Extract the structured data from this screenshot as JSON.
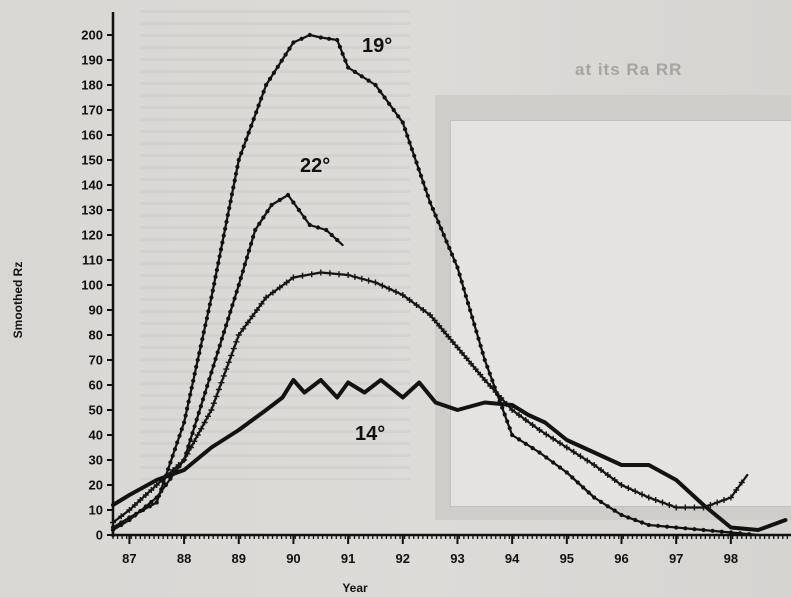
{
  "background": {
    "panel_caption": "at its Ra RR"
  },
  "chart_data": {
    "type": "line",
    "title": "",
    "xlabel": "Year",
    "ylabel": "Smoothed Rz",
    "xlim": [
      86.7,
      99.1
    ],
    "ylim": [
      0,
      200
    ],
    "x_ticks": [
      "87",
      "88",
      "89",
      "90",
      "91",
      "92",
      "93",
      "94",
      "95",
      "96",
      "97",
      "98"
    ],
    "y_ticks": [
      0,
      10,
      20,
      30,
      40,
      50,
      60,
      70,
      80,
      90,
      100,
      110,
      120,
      130,
      140,
      150,
      160,
      170,
      180,
      190,
      200
    ],
    "grid": false,
    "series": [
      {
        "name": "19°",
        "marker": "filled-dot",
        "x": [
          86.7,
          87.0,
          87.5,
          88.0,
          88.5,
          89.0,
          89.5,
          90.0,
          90.3,
          90.5,
          90.8,
          91.0,
          91.5,
          92.0,
          92.5,
          93.0,
          93.5,
          94.0,
          94.5,
          95.0,
          95.5,
          96.0,
          96.5,
          97.0,
          97.5,
          98.0,
          98.5
        ],
        "y": [
          3,
          7,
          13,
          45,
          95,
          150,
          180,
          197,
          200,
          199,
          198,
          187,
          180,
          165,
          133,
          107,
          70,
          40,
          33,
          25,
          15,
          8,
          4,
          3,
          2,
          1,
          0
        ]
      },
      {
        "name": "22°",
        "marker": "filled-dot",
        "x": [
          86.7,
          87.0,
          87.5,
          88.0,
          88.5,
          89.0,
          89.3,
          89.6,
          89.9,
          90.1,
          90.3,
          90.6,
          90.9
        ],
        "y": [
          2,
          6,
          15,
          30,
          65,
          100,
          122,
          132,
          136,
          130,
          124,
          122,
          116
        ]
      },
      {
        "name": "",
        "marker": "plus",
        "x": [
          86.7,
          87.0,
          87.5,
          88.0,
          88.5,
          89.0,
          89.5,
          90.0,
          90.5,
          91.0,
          91.5,
          92.0,
          92.5,
          93.0,
          93.5,
          94.0,
          94.5,
          95.0,
          95.5,
          96.0,
          96.5,
          97.0,
          97.5,
          98.0,
          98.3
        ],
        "y": [
          5,
          10,
          20,
          30,
          50,
          80,
          95,
          103,
          105,
          104,
          101,
          96,
          88,
          75,
          62,
          50,
          42,
          35,
          28,
          20,
          15,
          11,
          11,
          15,
          24
        ]
      },
      {
        "name": "14°",
        "marker": "solid",
        "x": [
          86.7,
          87.0,
          87.5,
          88.0,
          88.5,
          89.0,
          89.5,
          89.8,
          90.0,
          90.2,
          90.5,
          90.8,
          91.0,
          91.3,
          91.6,
          92.0,
          92.3,
          92.6,
          93.0,
          93.5,
          94.0,
          94.3,
          94.6,
          95.0,
          95.5,
          96.0,
          96.5,
          97.0,
          97.5,
          98.0,
          98.5,
          99.0
        ],
        "y": [
          12,
          16,
          22,
          26,
          35,
          42,
          50,
          55,
          62,
          57,
          62,
          55,
          61,
          57,
          62,
          55,
          61,
          53,
          50,
          53,
          52,
          48,
          45,
          38,
          33,
          28,
          28,
          22,
          12,
          3,
          2,
          6
        ]
      }
    ],
    "series_labels": [
      "19°",
      "22°",
      "14°"
    ],
    "legend": "inline labels next to curves"
  }
}
